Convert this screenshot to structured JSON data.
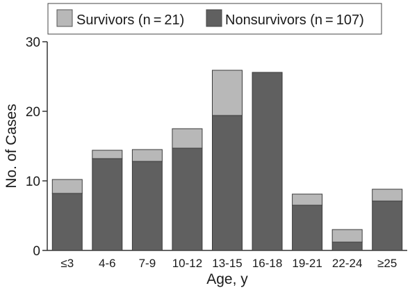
{
  "chart_data": {
    "type": "bar",
    "stacked": true,
    "xlabel": "Age, y",
    "ylabel": "No. of Cases",
    "ylim": [
      0,
      30
    ],
    "yticks": [
      0,
      10,
      20,
      30
    ],
    "grid": false,
    "legend_position": "top",
    "categories": [
      "≤3",
      "4-6",
      "7-9",
      "10-12",
      "13-15",
      "16-18",
      "19-21",
      "22-24",
      "≥25"
    ],
    "series": [
      {
        "name": "Nonsurvivors (n = 107)",
        "color": "#606060",
        "values": [
          8.2,
          13.2,
          12.8,
          14.7,
          19.4,
          25.6,
          6.5,
          1.2,
          7.1
        ]
      },
      {
        "name": "Survivors (n = 21)",
        "color": "#b8b8b8",
        "values": [
          2.0,
          1.2,
          1.7,
          2.8,
          6.5,
          0,
          1.6,
          1.8,
          1.7
        ]
      }
    ],
    "legend": [
      {
        "name": "Survivors (n = 21)",
        "color": "#b8b8b8"
      },
      {
        "name": "Nonsurvivors (n = 107)",
        "color": "#606060"
      }
    ]
  }
}
